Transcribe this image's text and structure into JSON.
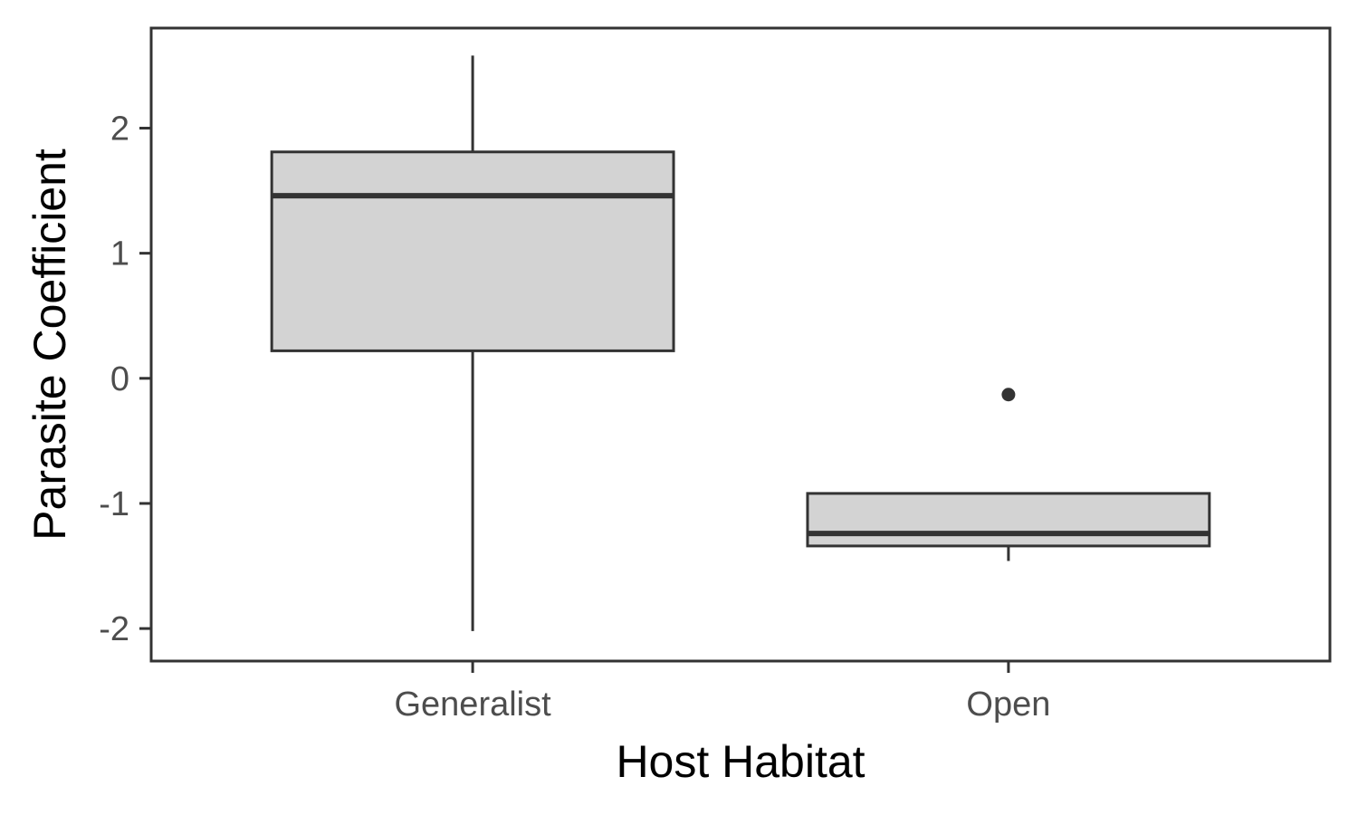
{
  "chart_data": {
    "type": "box",
    "title": "",
    "xlabel": "Host Habitat",
    "ylabel": "Parasite Coefficient",
    "categories": [
      "Generalist",
      "Open"
    ],
    "boxes": [
      {
        "category": "Generalist",
        "whisker_low": -2.02,
        "q1": 0.22,
        "median": 1.46,
        "q3": 1.81,
        "whisker_high": 2.58,
        "outliers": []
      },
      {
        "category": "Open",
        "whisker_low": -1.46,
        "q1": -1.34,
        "median": -1.24,
        "q3": -0.92,
        "whisker_high": -0.92,
        "outliers": [
          -0.13
        ]
      }
    ],
    "ylim": [
      -2.26,
      2.8
    ],
    "yticks": [
      -2,
      -1,
      0,
      1,
      2
    ],
    "yticklabels": [
      "-2",
      "-1",
      "0",
      "1",
      "2"
    ],
    "grid": false,
    "legend": "none",
    "colors": {
      "box_fill": "#d3d3d3",
      "stroke": "#333333",
      "panel_border": "#333333"
    }
  }
}
